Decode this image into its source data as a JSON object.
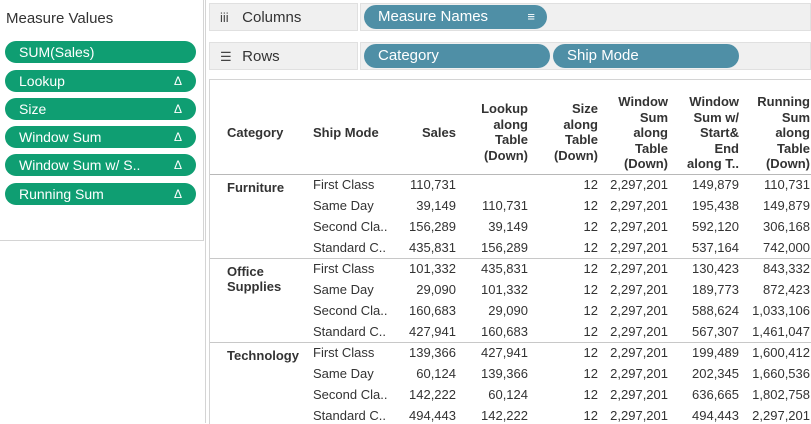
{
  "measure_values": {
    "title": "Measure Values",
    "pills": [
      {
        "label": "SUM(Sales)",
        "delta": ""
      },
      {
        "label": "Lookup",
        "delta": "Δ"
      },
      {
        "label": "Size",
        "delta": "Δ"
      },
      {
        "label": "Window Sum",
        "delta": "Δ"
      },
      {
        "label": "Window Sum w/ S..",
        "delta": "Δ"
      },
      {
        "label": "Running Sum",
        "delta": "Δ"
      }
    ],
    "pill_color": "#0f9e72"
  },
  "shelves": {
    "columns": {
      "icon": "iii",
      "label": "Columns",
      "pills": [
        "Measure Names"
      ],
      "sort_icon": "≡"
    },
    "rows": {
      "icon": "☰",
      "label": "Rows",
      "pills": [
        "Category",
        "Ship Mode"
      ]
    },
    "pill_color": "#4f8fa6"
  },
  "table": {
    "headers": {
      "category": "Category",
      "ship_mode": "Ship Mode",
      "sales": "Sales",
      "lookup": [
        "Lookup",
        "along",
        "Table",
        "(Down)"
      ],
      "size": [
        "Size",
        "along",
        "Table",
        "(Down)"
      ],
      "window_sum": [
        "Window",
        "Sum",
        "along",
        "Table",
        "(Down)"
      ],
      "window_sum_se": [
        "Window",
        "Sum w/",
        "Start&",
        "End",
        "along T.."
      ],
      "running_sum": [
        "Running",
        "Sum",
        "along",
        "Table",
        "(Down)"
      ]
    },
    "groups": [
      {
        "category": [
          "Furniture"
        ],
        "rows": [
          [
            "First Class",
            "110,731",
            "",
            "12",
            "2,297,201",
            "149,879",
            "110,731"
          ],
          [
            "Same Day",
            "39,149",
            "110,731",
            "12",
            "2,297,201",
            "195,438",
            "149,879"
          ],
          [
            "Second Cla..",
            "156,289",
            "39,149",
            "12",
            "2,297,201",
            "592,120",
            "306,168"
          ],
          [
            "Standard C..",
            "435,831",
            "156,289",
            "12",
            "2,297,201",
            "537,164",
            "742,000"
          ]
        ]
      },
      {
        "category": [
          "Office",
          "Supplies"
        ],
        "rows": [
          [
            "First Class",
            "101,332",
            "435,831",
            "12",
            "2,297,201",
            "130,423",
            "843,332"
          ],
          [
            "Same Day",
            "29,090",
            "101,332",
            "12",
            "2,297,201",
            "189,773",
            "872,423"
          ],
          [
            "Second Cla..",
            "160,683",
            "29,090",
            "12",
            "2,297,201",
            "588,624",
            "1,033,106"
          ],
          [
            "Standard C..",
            "427,941",
            "160,683",
            "12",
            "2,297,201",
            "567,307",
            "1,461,047"
          ]
        ]
      },
      {
        "category": [
          "Technology"
        ],
        "rows": [
          [
            "First Class",
            "139,366",
            "427,941",
            "12",
            "2,297,201",
            "199,489",
            "1,600,412"
          ],
          [
            "Same Day",
            "60,124",
            "139,366",
            "12",
            "2,297,201",
            "202,345",
            "1,660,536"
          ],
          [
            "Second Cla..",
            "142,222",
            "60,124",
            "12",
            "2,297,201",
            "636,665",
            "1,802,758"
          ],
          [
            "Standard C..",
            "494,443",
            "142,222",
            "12",
            "2,297,201",
            "494,443",
            "2,297,201"
          ]
        ]
      }
    ]
  }
}
